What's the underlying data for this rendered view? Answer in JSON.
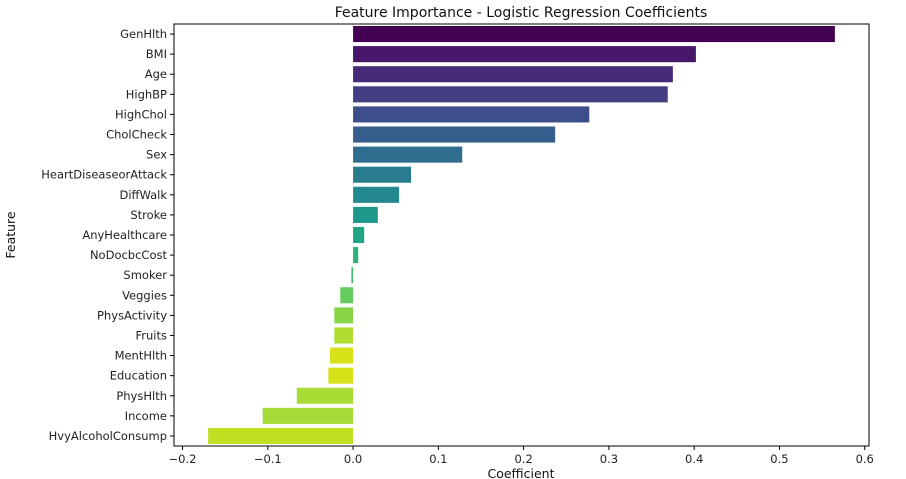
{
  "chart_data": {
    "type": "bar",
    "orientation": "horizontal",
    "title": "Feature Importance - Logistic Regression Coefficients",
    "xlabel": "Coefficient",
    "ylabel": "Feature",
    "xlim": [
      -0.21,
      0.605
    ],
    "xticks": [
      -0.2,
      -0.1,
      0.0,
      0.1,
      0.2,
      0.3,
      0.4,
      0.5,
      0.6
    ],
    "xtick_labels": [
      "−0.2",
      "−0.1",
      "0.0",
      "0.1",
      "0.2",
      "0.3",
      "0.4",
      "0.5",
      "0.6"
    ],
    "grid": false,
    "colormap": "viridis",
    "categories": [
      "GenHlth",
      "BMI",
      "Age",
      "HighBP",
      "HighChol",
      "CholCheck",
      "Sex",
      "HeartDiseaseorAttack",
      "DiffWalk",
      "Stroke",
      "AnyHealthcare",
      "NoDocbcCost",
      "Smoker",
      "Veggies",
      "PhysActivity",
      "Fruits",
      "MentHlth",
      "Education",
      "PhysHlth",
      "Income",
      "HvyAlcoholConsump"
    ],
    "values": [
      0.565,
      0.402,
      0.375,
      0.369,
      0.277,
      0.237,
      0.128,
      0.068,
      0.054,
      0.029,
      0.013,
      0.006,
      -0.002,
      -0.015,
      -0.022,
      -0.022,
      -0.027,
      -0.029,
      -0.066,
      -0.106,
      -0.17
    ],
    "colors": [
      "#440154",
      "#481769",
      "#472a7a",
      "#433d84",
      "#3d4e8a",
      "#355e8d",
      "#2e6d8e",
      "#297b8e",
      "#23898e",
      "#1f978b",
      "#21a585",
      "#2eb37c",
      "#46c06f",
      "#65cb5e",
      "#89d548",
      "#b0dd2f",
      "#d8e219",
      "#d8e219",
      "#a8db34",
      "#a5db36",
      "#c2df23"
    ]
  }
}
